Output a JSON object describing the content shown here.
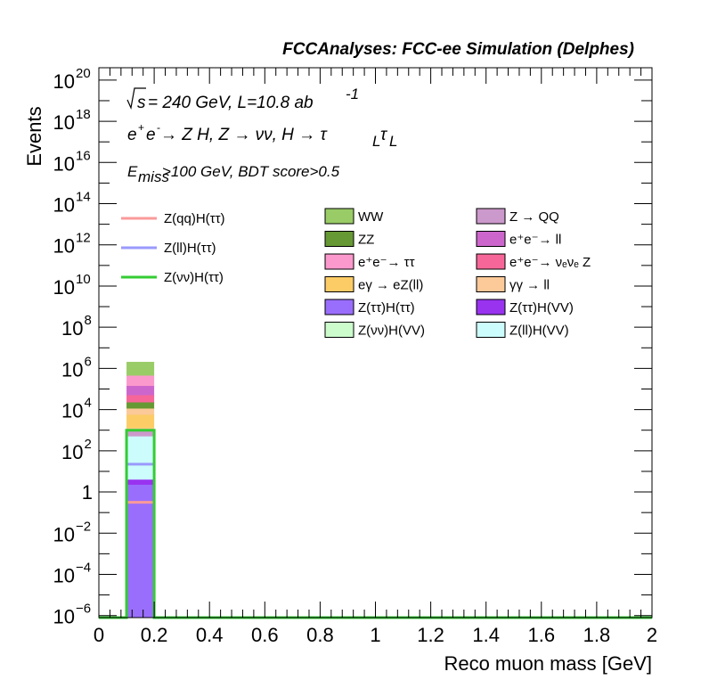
{
  "chart_data": {
    "type": "bar",
    "title": "FCCAnalyses: FCC-ee Simulation (Delphes)",
    "xlabel": "Reco muon mass [GeV]",
    "ylabel": "Events",
    "xlim": [
      0,
      2
    ],
    "ylim_log10": [
      -6.1,
      20.6
    ],
    "log_y": true,
    "x_ticks": [
      {
        "v": 0,
        "label": "0"
      },
      {
        "v": 0.2,
        "label": "0.2"
      },
      {
        "v": 0.4,
        "label": "0.4"
      },
      {
        "v": 0.6,
        "label": "0.6"
      },
      {
        "v": 0.8,
        "label": "0.8"
      },
      {
        "v": 1,
        "label": "1"
      },
      {
        "v": 1.2,
        "label": "1.2"
      },
      {
        "v": 1.4,
        "label": "1.4"
      },
      {
        "v": 1.6,
        "label": "1.6"
      },
      {
        "v": 1.8,
        "label": "1.8"
      },
      {
        "v": 2,
        "label": "2"
      }
    ],
    "y_ticks": [
      {
        "e": -6,
        "base": "10",
        "exp": "−6"
      },
      {
        "e": -4,
        "base": "10",
        "exp": "−4"
      },
      {
        "e": -2,
        "base": "10",
        "exp": "−2"
      },
      {
        "e": 0,
        "base": "1",
        "exp": ""
      },
      {
        "e": 2,
        "base": "10",
        "exp": "2"
      },
      {
        "e": 4,
        "base": "10",
        "exp": "4"
      },
      {
        "e": 6,
        "base": "10",
        "exp": "6"
      },
      {
        "e": 8,
        "base": "10",
        "exp": "8"
      },
      {
        "e": 10,
        "base": "10",
        "exp": "10"
      },
      {
        "e": 12,
        "base": "10",
        "exp": "12"
      },
      {
        "e": 14,
        "base": "10",
        "exp": "14"
      },
      {
        "e": 16,
        "base": "10",
        "exp": "16"
      },
      {
        "e": 18,
        "base": "10",
        "exp": "18"
      },
      {
        "e": 20,
        "base": "10",
        "exp": "20"
      }
    ],
    "bin": [
      0.1,
      0.2
    ],
    "stack_log10_tops": [
      {
        "name": "Z(ττ)H(ττ)",
        "color": "#9a6efc",
        "top": 0.35
      },
      {
        "name": "Z(ττ)H(VV)",
        "color": "#9933f0",
        "top": 0.6
      },
      {
        "name": "Z(ll)H(VV)",
        "color": "#ccfcfc",
        "top": 2.7
      },
      {
        "name": "Z → QQ",
        "color": "#cc99cc",
        "top": 2.95
      },
      {
        "name": "ZZ",
        "color": "#669933",
        "top": 3.05
      },
      {
        "name": "γγ → ll",
        "color": "#fcc999",
        "top": 3.1
      },
      {
        "name": "eγ → eZ(ll)",
        "color": "#fccc66",
        "top": 3.75
      },
      {
        "name": "γγ → ll",
        "color": "#fcc999",
        "top": 4.05
      },
      {
        "name": "ZZ",
        "color": "#669933",
        "top": 4.35
      },
      {
        "name": "e⁺e⁻→ νeνe Z",
        "color": "#f76698",
        "top": 4.7
      },
      {
        "name": "e⁺e⁻→ ll",
        "color": "#cc66cc",
        "top": 5.15
      },
      {
        "name": "e⁺e⁻→ ττ",
        "color": "#fc99cc",
        "top": 5.65
      },
      {
        "name": "WW",
        "color": "#99cc66",
        "top": 6.3
      }
    ],
    "signal_lines": [
      {
        "name": "Z(qq)H(ττ)",
        "color": "#fa9a9a",
        "log10": -0.5
      },
      {
        "name": "Z(ll)H(ττ)",
        "color": "#9a9afc",
        "log10": 1.35
      },
      {
        "name": "Z(νν)H(ττ)",
        "color": "#33cc33",
        "log10": 3.0
      }
    ],
    "annotations": {
      "sqrt_s": "s",
      "energy_line": "= 240 GeV, L=10.8 ab",
      "lumi_exp": "-1",
      "process_line_pre": "e",
      "process_line_mid": " → Z H, Z  → νν, H  → τ",
      "process_line_sub": "L",
      "process_line_tau2": "τ",
      "cut_E": "E",
      "cut_sub": "miss",
      "cut_rest": ">100 GeV, BDT score>0.5"
    },
    "legend": {
      "lines": [
        {
          "label": "Z(qq)H(ττ)",
          "color": "#fa9a9a"
        },
        {
          "label": "Z(ll)H(ττ)",
          "color": "#9a9afc"
        },
        {
          "label": "Z(νν)H(ττ)",
          "color": "#33cc33"
        }
      ],
      "col1": [
        {
          "label": "WW",
          "color": "#99cc66"
        },
        {
          "label": "ZZ",
          "color": "#669933"
        },
        {
          "label": "e⁺e⁻→ ττ",
          "color": "#fc99cc"
        },
        {
          "label": "eγ → eZ(ll)",
          "color": "#fccc66"
        },
        {
          "label": "Z(ττ)H(ττ)",
          "color": "#9a6efc"
        },
        {
          "label": "Z(νν)H(VV)",
          "color": "#ccfccc"
        }
      ],
      "col2": [
        {
          "label": "Z → QQ",
          "color": "#cc99cc"
        },
        {
          "label": "e⁺e⁻→ ll",
          "color": "#cc66cc"
        },
        {
          "label": "e⁺e⁻→ νₑνₑ Z",
          "color": "#f76698"
        },
        {
          "label": "γγ → ll",
          "color": "#fcc999"
        },
        {
          "label": "Z(ττ)H(VV)",
          "color": "#9933f0"
        },
        {
          "label": "Z(ll)H(VV)",
          "color": "#ccfcfc"
        }
      ]
    }
  }
}
